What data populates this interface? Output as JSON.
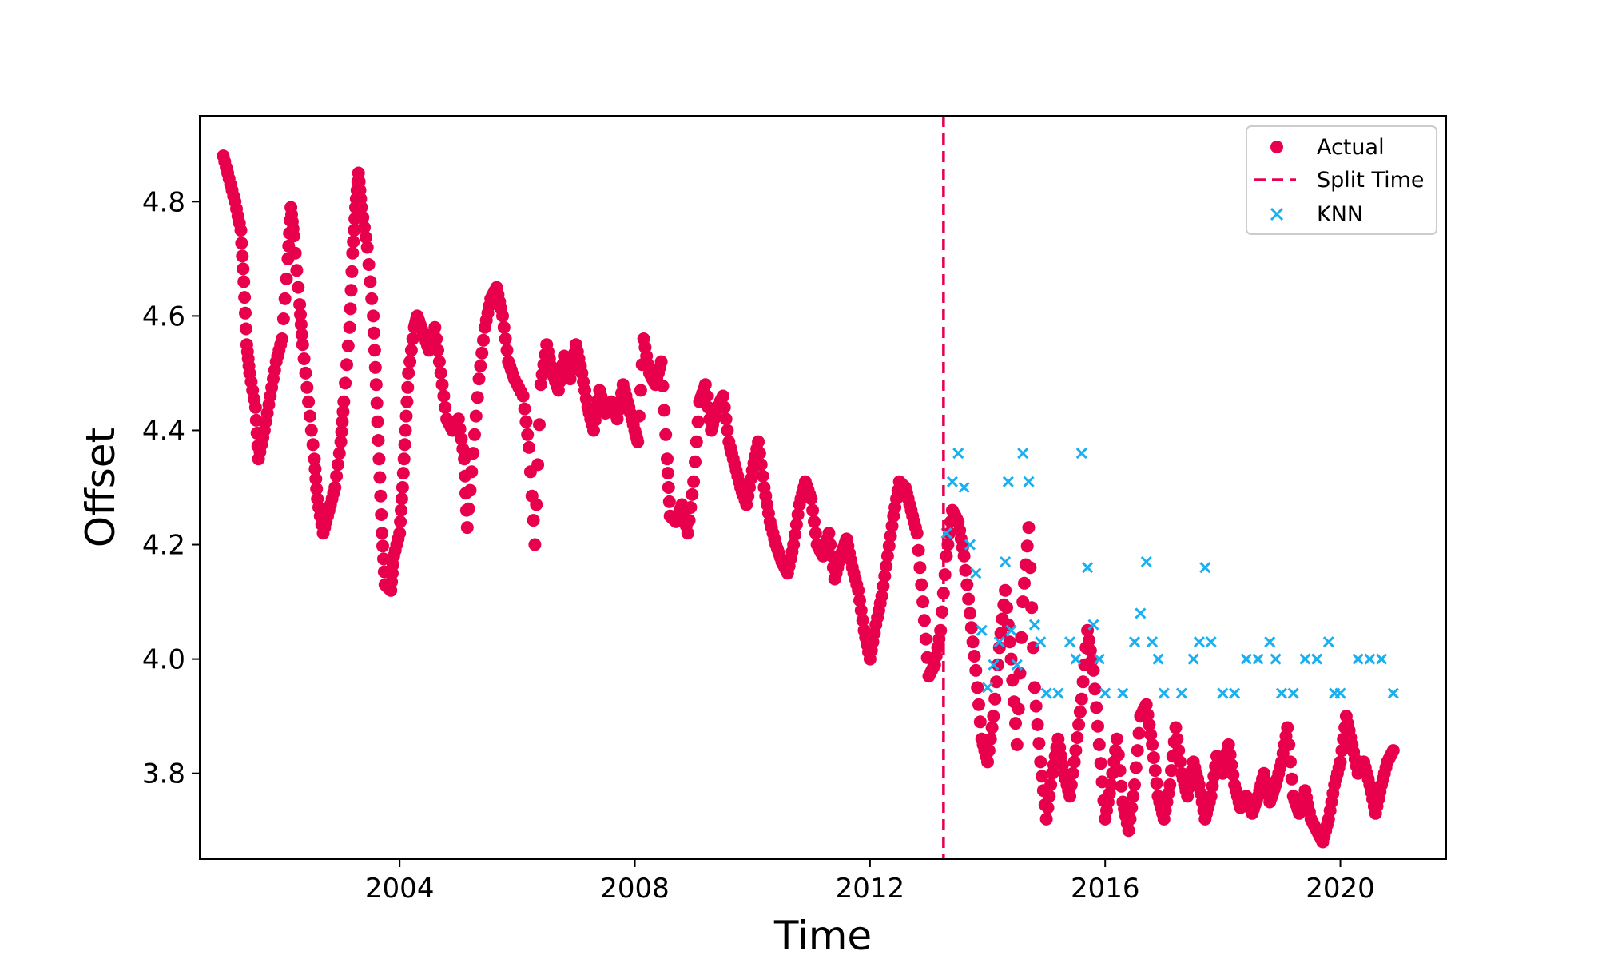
{
  "chart_data": {
    "type": "scatter",
    "title": "",
    "xlabel": "Time",
    "ylabel": "Offset",
    "xlim": [
      2000.6,
      2021.8
    ],
    "ylim": [
      3.65,
      4.95
    ],
    "x_ticks": [
      2004,
      2008,
      2012,
      2016,
      2020
    ],
    "x_tick_labels": [
      "2004",
      "2008",
      "2012",
      "2016",
      "2020"
    ],
    "y_ticks": [
      3.8,
      4.0,
      4.2,
      4.4,
      4.6,
      4.8
    ],
    "y_tick_labels": [
      "3.8",
      "4.0",
      "4.2",
      "4.4",
      "4.6",
      "4.8"
    ],
    "grid": false,
    "legend_position": "top-right",
    "split_time": 2013.25,
    "series": [
      {
        "name": "Actual",
        "marker": "circle",
        "color": "#E8004D",
        "points": [
          [
            2001.0,
            4.88
          ],
          [
            2001.1,
            4.84
          ],
          [
            2001.2,
            4.8
          ],
          [
            2001.3,
            4.75
          ],
          [
            2001.35,
            4.66
          ],
          [
            2001.4,
            4.55
          ],
          [
            2001.45,
            4.5
          ],
          [
            2001.55,
            4.44
          ],
          [
            2001.6,
            4.35
          ],
          [
            2001.7,
            4.4
          ],
          [
            2001.8,
            4.46
          ],
          [
            2001.9,
            4.52
          ],
          [
            2002.0,
            4.56
          ],
          [
            2002.1,
            4.7
          ],
          [
            2002.15,
            4.79
          ],
          [
            2002.2,
            4.74
          ],
          [
            2002.3,
            4.62
          ],
          [
            2002.35,
            4.55
          ],
          [
            2002.45,
            4.45
          ],
          [
            2002.55,
            4.35
          ],
          [
            2002.6,
            4.28
          ],
          [
            2002.7,
            4.22
          ],
          [
            2002.8,
            4.26
          ],
          [
            2002.9,
            4.3
          ],
          [
            2003.0,
            4.38
          ],
          [
            2003.05,
            4.45
          ],
          [
            2003.15,
            4.58
          ],
          [
            2003.2,
            4.71
          ],
          [
            2003.25,
            4.79
          ],
          [
            2003.3,
            4.85
          ],
          [
            2003.35,
            4.79
          ],
          [
            2003.45,
            4.72
          ],
          [
            2003.55,
            4.6
          ],
          [
            2003.6,
            4.48
          ],
          [
            2003.65,
            4.35
          ],
          [
            2003.7,
            4.22
          ],
          [
            2003.75,
            4.13
          ],
          [
            2003.85,
            4.12
          ],
          [
            2003.9,
            4.18
          ],
          [
            2004.0,
            4.22
          ],
          [
            2004.05,
            4.3
          ],
          [
            2004.1,
            4.4
          ],
          [
            2004.15,
            4.5
          ],
          [
            2004.25,
            4.58
          ],
          [
            2004.3,
            4.6
          ],
          [
            2004.4,
            4.57
          ],
          [
            2004.5,
            4.54
          ],
          [
            2004.6,
            4.58
          ],
          [
            2004.7,
            4.5
          ],
          [
            2004.8,
            4.42
          ],
          [
            2004.9,
            4.4
          ],
          [
            2005.0,
            4.42
          ],
          [
            2005.1,
            4.35
          ],
          [
            2005.15,
            4.23
          ],
          [
            2005.25,
            4.36
          ],
          [
            2005.35,
            4.49
          ],
          [
            2005.45,
            4.58
          ],
          [
            2005.55,
            4.63
          ],
          [
            2005.65,
            4.65
          ],
          [
            2005.75,
            4.6
          ],
          [
            2005.85,
            4.52
          ],
          [
            2005.95,
            4.49
          ],
          [
            2006.1,
            4.46
          ],
          [
            2006.2,
            4.37
          ],
          [
            2006.3,
            4.2
          ],
          [
            2006.4,
            4.48
          ],
          [
            2006.5,
            4.55
          ],
          [
            2006.6,
            4.5
          ],
          [
            2006.7,
            4.47
          ],
          [
            2006.8,
            4.53
          ],
          [
            2006.9,
            4.49
          ],
          [
            2007.0,
            4.55
          ],
          [
            2007.1,
            4.5
          ],
          [
            2007.2,
            4.44
          ],
          [
            2007.3,
            4.4
          ],
          [
            2007.4,
            4.47
          ],
          [
            2007.5,
            4.43
          ],
          [
            2007.6,
            4.45
          ],
          [
            2007.7,
            4.42
          ],
          [
            2007.8,
            4.48
          ],
          [
            2007.9,
            4.44
          ],
          [
            2008.0,
            4.4
          ],
          [
            2008.05,
            4.38
          ],
          [
            2008.15,
            4.56
          ],
          [
            2008.25,
            4.5
          ],
          [
            2008.35,
            4.48
          ],
          [
            2008.45,
            4.52
          ],
          [
            2008.55,
            4.35
          ],
          [
            2008.6,
            4.25
          ],
          [
            2008.7,
            4.24
          ],
          [
            2008.8,
            4.27
          ],
          [
            2008.9,
            4.22
          ],
          [
            2009.0,
            4.31
          ],
          [
            2009.1,
            4.45
          ],
          [
            2009.2,
            4.48
          ],
          [
            2009.3,
            4.4
          ],
          [
            2009.4,
            4.44
          ],
          [
            2009.5,
            4.46
          ],
          [
            2009.6,
            4.38
          ],
          [
            2009.7,
            4.34
          ],
          [
            2009.8,
            4.3
          ],
          [
            2009.9,
            4.27
          ],
          [
            2010.0,
            4.33
          ],
          [
            2010.1,
            4.38
          ],
          [
            2010.2,
            4.3
          ],
          [
            2010.3,
            4.24
          ],
          [
            2010.4,
            4.2
          ],
          [
            2010.5,
            4.17
          ],
          [
            2010.6,
            4.15
          ],
          [
            2010.7,
            4.2
          ],
          [
            2010.8,
            4.27
          ],
          [
            2010.9,
            4.31
          ],
          [
            2011.0,
            4.28
          ],
          [
            2011.1,
            4.2
          ],
          [
            2011.2,
            4.18
          ],
          [
            2011.3,
            4.22
          ],
          [
            2011.4,
            4.14
          ],
          [
            2011.5,
            4.18
          ],
          [
            2011.6,
            4.21
          ],
          [
            2011.7,
            4.16
          ],
          [
            2011.8,
            4.12
          ],
          [
            2011.9,
            4.05
          ],
          [
            2012.0,
            4.0
          ],
          [
            2012.1,
            4.06
          ],
          [
            2012.2,
            4.11
          ],
          [
            2012.3,
            4.18
          ],
          [
            2012.4,
            4.25
          ],
          [
            2012.5,
            4.31
          ],
          [
            2012.6,
            4.3
          ],
          [
            2012.7,
            4.26
          ],
          [
            2012.8,
            4.22
          ],
          [
            2012.9,
            4.1
          ],
          [
            2013.0,
            3.97
          ],
          [
            2013.1,
            3.99
          ],
          [
            2013.2,
            4.05
          ],
          [
            2013.3,
            4.18
          ],
          [
            2013.4,
            4.26
          ],
          [
            2013.5,
            4.24
          ],
          [
            2013.6,
            4.18
          ],
          [
            2013.7,
            4.08
          ],
          [
            2013.8,
            3.98
          ],
          [
            2013.9,
            3.86
          ],
          [
            2014.0,
            3.82
          ],
          [
            2014.1,
            3.9
          ],
          [
            2014.2,
            4.02
          ],
          [
            2014.3,
            4.12
          ],
          [
            2014.4,
            4.0
          ],
          [
            2014.5,
            3.85
          ],
          [
            2014.6,
            4.1
          ],
          [
            2014.7,
            4.23
          ],
          [
            2014.8,
            3.95
          ],
          [
            2014.9,
            3.82
          ],
          [
            2015.0,
            3.72
          ],
          [
            2015.1,
            3.8
          ],
          [
            2015.2,
            3.86
          ],
          [
            2015.3,
            3.8
          ],
          [
            2015.4,
            3.76
          ],
          [
            2015.5,
            3.84
          ],
          [
            2015.6,
            3.93
          ],
          [
            2015.7,
            4.05
          ],
          [
            2015.8,
            3.98
          ],
          [
            2015.9,
            3.85
          ],
          [
            2016.0,
            3.72
          ],
          [
            2016.1,
            3.78
          ],
          [
            2016.2,
            3.86
          ],
          [
            2016.3,
            3.75
          ],
          [
            2016.4,
            3.7
          ],
          [
            2016.5,
            3.78
          ],
          [
            2016.6,
            3.9
          ],
          [
            2016.7,
            3.92
          ],
          [
            2016.8,
            3.85
          ],
          [
            2016.9,
            3.76
          ],
          [
            2017.0,
            3.72
          ],
          [
            2017.1,
            3.78
          ],
          [
            2017.2,
            3.88
          ],
          [
            2017.3,
            3.8
          ],
          [
            2017.4,
            3.76
          ],
          [
            2017.5,
            3.82
          ],
          [
            2017.6,
            3.78
          ],
          [
            2017.7,
            3.72
          ],
          [
            2017.8,
            3.76
          ],
          [
            2017.9,
            3.83
          ],
          [
            2018.0,
            3.8
          ],
          [
            2018.1,
            3.85
          ],
          [
            2018.2,
            3.78
          ],
          [
            2018.3,
            3.74
          ],
          [
            2018.4,
            3.76
          ],
          [
            2018.5,
            3.73
          ],
          [
            2018.6,
            3.76
          ],
          [
            2018.7,
            3.8
          ],
          [
            2018.8,
            3.75
          ],
          [
            2018.9,
            3.78
          ],
          [
            2019.0,
            3.82
          ],
          [
            2019.1,
            3.88
          ],
          [
            2019.2,
            3.76
          ],
          [
            2019.3,
            3.73
          ],
          [
            2019.4,
            3.77
          ],
          [
            2019.5,
            3.72
          ],
          [
            2019.6,
            3.7
          ],
          [
            2019.7,
            3.68
          ],
          [
            2019.8,
            3.72
          ],
          [
            2019.9,
            3.78
          ],
          [
            2020.0,
            3.82
          ],
          [
            2020.1,
            3.9
          ],
          [
            2020.2,
            3.85
          ],
          [
            2020.3,
            3.8
          ],
          [
            2020.4,
            3.82
          ],
          [
            2020.5,
            3.78
          ],
          [
            2020.6,
            3.73
          ],
          [
            2020.7,
            3.78
          ],
          [
            2020.8,
            3.82
          ],
          [
            2020.9,
            3.84
          ]
        ]
      },
      {
        "name": "Split Time",
        "marker": "dashed-line",
        "color": "#E8004D"
      },
      {
        "name": "KNN",
        "marker": "x",
        "color": "#1AB0F0",
        "points": [
          [
            2013.3,
            4.22
          ],
          [
            2013.4,
            4.31
          ],
          [
            2013.5,
            4.36
          ],
          [
            2013.6,
            4.3
          ],
          [
            2013.7,
            4.2
          ],
          [
            2013.8,
            4.15
          ],
          [
            2013.9,
            4.05
          ],
          [
            2014.0,
            3.95
          ],
          [
            2014.1,
            3.99
          ],
          [
            2014.2,
            4.03
          ],
          [
            2014.3,
            4.17
          ],
          [
            2014.35,
            4.31
          ],
          [
            2014.4,
            4.05
          ],
          [
            2014.5,
            3.99
          ],
          [
            2014.6,
            4.36
          ],
          [
            2014.7,
            4.31
          ],
          [
            2014.8,
            4.06
          ],
          [
            2014.9,
            4.03
          ],
          [
            2015.0,
            3.94
          ],
          [
            2015.2,
            3.94
          ],
          [
            2015.4,
            4.03
          ],
          [
            2015.5,
            4.0
          ],
          [
            2015.6,
            4.36
          ],
          [
            2015.7,
            4.16
          ],
          [
            2015.8,
            4.06
          ],
          [
            2015.9,
            4.0
          ],
          [
            2016.0,
            3.94
          ],
          [
            2016.3,
            3.94
          ],
          [
            2016.5,
            4.03
          ],
          [
            2016.6,
            4.08
          ],
          [
            2016.7,
            4.17
          ],
          [
            2016.8,
            4.03
          ],
          [
            2016.9,
            4.0
          ],
          [
            2017.0,
            3.94
          ],
          [
            2017.3,
            3.94
          ],
          [
            2017.5,
            4.0
          ],
          [
            2017.6,
            4.03
          ],
          [
            2017.7,
            4.16
          ],
          [
            2017.8,
            4.03
          ],
          [
            2018.0,
            3.94
          ],
          [
            2018.2,
            3.94
          ],
          [
            2018.4,
            4.0
          ],
          [
            2018.6,
            4.0
          ],
          [
            2018.8,
            4.03
          ],
          [
            2018.9,
            4.0
          ],
          [
            2019.0,
            3.94
          ],
          [
            2019.2,
            3.94
          ],
          [
            2019.4,
            4.0
          ],
          [
            2019.6,
            4.0
          ],
          [
            2019.8,
            4.03
          ],
          [
            2019.9,
            3.94
          ],
          [
            2020.0,
            3.94
          ],
          [
            2020.3,
            4.0
          ],
          [
            2020.5,
            4.0
          ],
          [
            2020.7,
            4.0
          ],
          [
            2020.9,
            3.94
          ]
        ]
      }
    ]
  }
}
